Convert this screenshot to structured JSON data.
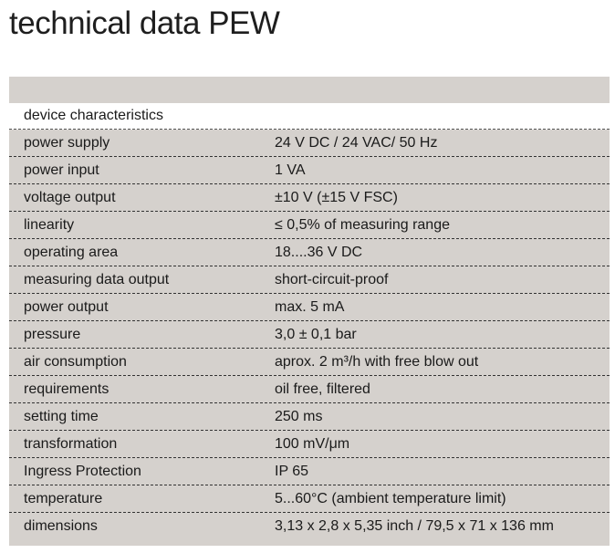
{
  "title": "technical data PEW",
  "section": "device characteristics",
  "rows": [
    {
      "key": "power supply",
      "value": "24 V DC / 24 VAC/ 50 Hz"
    },
    {
      "key": "power input",
      "value": "1 VA"
    },
    {
      "key": "voltage output",
      "value": "±10 V (±15 V FSC)"
    },
    {
      "key": "linearity",
      "value": "≤ 0,5% of measuring range"
    },
    {
      "key": "operating area",
      "value": "18....36 V DC"
    },
    {
      "key": "measuring data output",
      "value": "short-circuit-proof"
    },
    {
      "key": "power output",
      "value": "max. 5 mA"
    },
    {
      "key": "pressure",
      "value": "3,0 ± 0,1 bar"
    },
    {
      "key": "air consumption",
      "value": "aprox. 2 m³/h with free blow out"
    },
    {
      "key": "requirements",
      "value": "oil free, filtered"
    },
    {
      "key": "setting time",
      "value": "250 ms"
    },
    {
      "key": "transformation",
      "value": "100 mV/μm"
    },
    {
      "key": "Ingress Protection",
      "value": "IP 65"
    },
    {
      "key": "temperature",
      "value": "5...60°C (ambient temperature limit)"
    },
    {
      "key": "dimensions",
      "value": "3,13 x 2,8 x 5,35 inch / 79,5 x 71 x 136 mm"
    }
  ]
}
